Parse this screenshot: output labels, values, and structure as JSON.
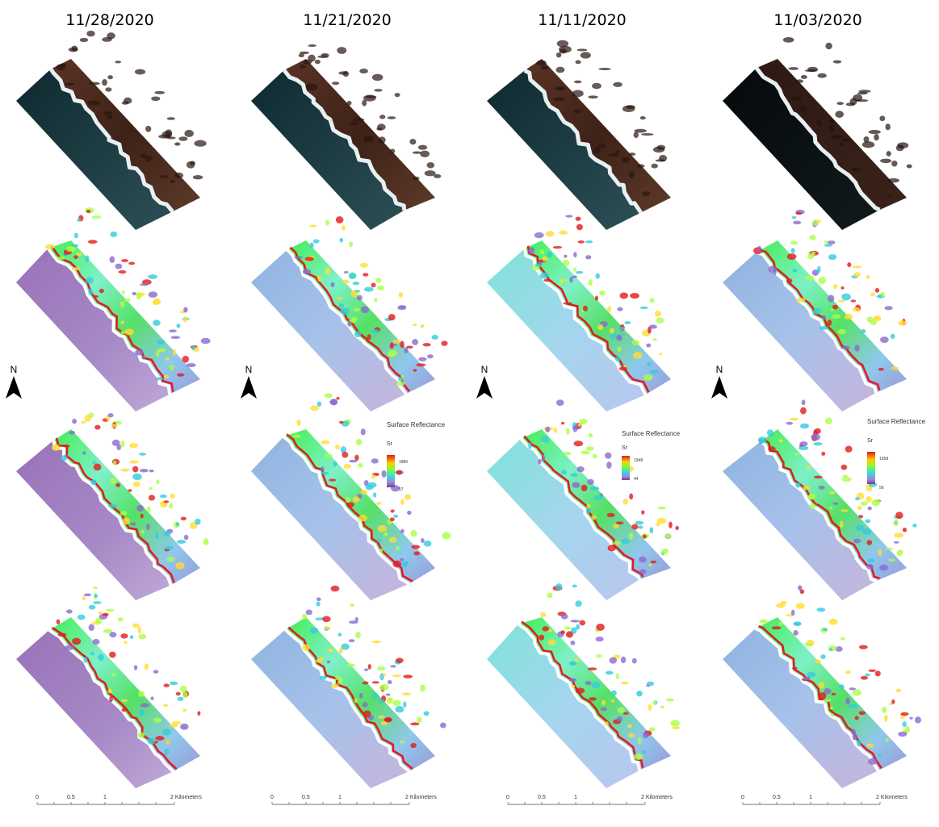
{
  "columns": [
    {
      "date": "11/28/2020",
      "legend": null
    },
    {
      "date": "11/21/2020",
      "legend": {
        "title": "Surface Reflectance",
        "unit": "Sr",
        "max": "1886",
        "min": "57"
      }
    },
    {
      "date": "11/11/2020",
      "legend": {
        "title": "Surface Reflectance",
        "unit": "Sr",
        "max": "1948",
        "min": "44"
      }
    },
    {
      "date": "11/03/2020",
      "legend": {
        "title": "Surface Reflectance",
        "unit": "Sr",
        "max": "1958",
        "min": "56"
      }
    }
  ],
  "north_arrow": {
    "label": "N"
  },
  "scale_bar": {
    "ticks": [
      "0",
      "0.5",
      "1",
      "2 Kilometers"
    ]
  },
  "colors": {
    "ocean_true_color": "#17323a",
    "land_true_color": "#4a2a1c",
    "surf": "#e8f0f2",
    "ramp_high": "#e41a1c",
    "ramp_mid": "#7dfc3a",
    "ramp_low": "#7a3f8c"
  }
}
